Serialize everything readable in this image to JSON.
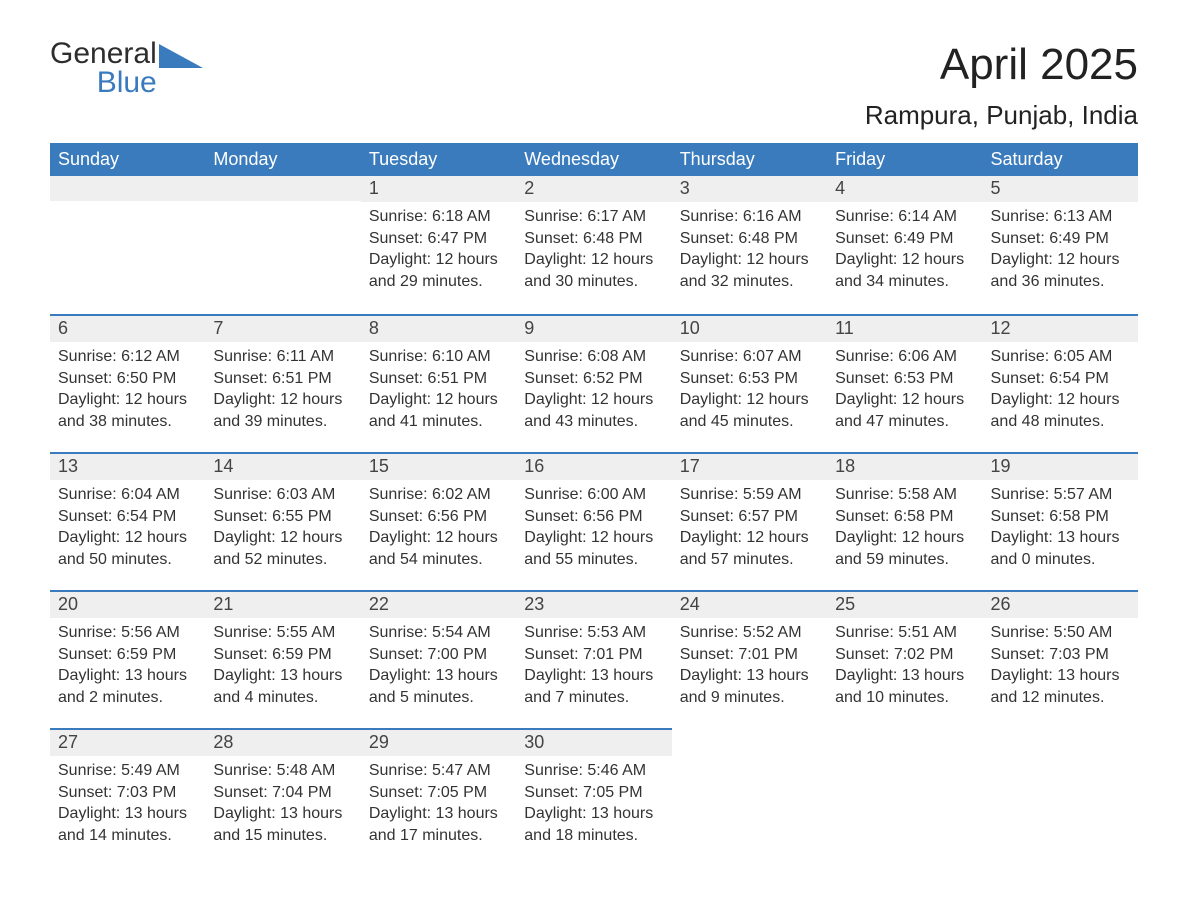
{
  "logo": {
    "text1": "General",
    "text2": "Blue"
  },
  "title": "April 2025",
  "subtitle": "Rampura, Punjab, India",
  "colors": {
    "header_bg": "#3a7bbd",
    "header_text": "#ffffff",
    "daynum_bg": "#efefef",
    "row_divider": "#3a7bbd",
    "body_text": "#333333",
    "page_bg": "#ffffff"
  },
  "day_labels": [
    "Sunday",
    "Monday",
    "Tuesday",
    "Wednesday",
    "Thursday",
    "Friday",
    "Saturday"
  ],
  "weeks": [
    [
      {
        "n": "",
        "sunrise": "",
        "sunset": "",
        "day1": "",
        "day2": ""
      },
      {
        "n": "",
        "sunrise": "",
        "sunset": "",
        "day1": "",
        "day2": ""
      },
      {
        "n": "1",
        "sunrise": "Sunrise: 6:18 AM",
        "sunset": "Sunset: 6:47 PM",
        "day1": "Daylight: 12 hours",
        "day2": "and 29 minutes."
      },
      {
        "n": "2",
        "sunrise": "Sunrise: 6:17 AM",
        "sunset": "Sunset: 6:48 PM",
        "day1": "Daylight: 12 hours",
        "day2": "and 30 minutes."
      },
      {
        "n": "3",
        "sunrise": "Sunrise: 6:16 AM",
        "sunset": "Sunset: 6:48 PM",
        "day1": "Daylight: 12 hours",
        "day2": "and 32 minutes."
      },
      {
        "n": "4",
        "sunrise": "Sunrise: 6:14 AM",
        "sunset": "Sunset: 6:49 PM",
        "day1": "Daylight: 12 hours",
        "day2": "and 34 minutes."
      },
      {
        "n": "5",
        "sunrise": "Sunrise: 6:13 AM",
        "sunset": "Sunset: 6:49 PM",
        "day1": "Daylight: 12 hours",
        "day2": "and 36 minutes."
      }
    ],
    [
      {
        "n": "6",
        "sunrise": "Sunrise: 6:12 AM",
        "sunset": "Sunset: 6:50 PM",
        "day1": "Daylight: 12 hours",
        "day2": "and 38 minutes."
      },
      {
        "n": "7",
        "sunrise": "Sunrise: 6:11 AM",
        "sunset": "Sunset: 6:51 PM",
        "day1": "Daylight: 12 hours",
        "day2": "and 39 minutes."
      },
      {
        "n": "8",
        "sunrise": "Sunrise: 6:10 AM",
        "sunset": "Sunset: 6:51 PM",
        "day1": "Daylight: 12 hours",
        "day2": "and 41 minutes."
      },
      {
        "n": "9",
        "sunrise": "Sunrise: 6:08 AM",
        "sunset": "Sunset: 6:52 PM",
        "day1": "Daylight: 12 hours",
        "day2": "and 43 minutes."
      },
      {
        "n": "10",
        "sunrise": "Sunrise: 6:07 AM",
        "sunset": "Sunset: 6:53 PM",
        "day1": "Daylight: 12 hours",
        "day2": "and 45 minutes."
      },
      {
        "n": "11",
        "sunrise": "Sunrise: 6:06 AM",
        "sunset": "Sunset: 6:53 PM",
        "day1": "Daylight: 12 hours",
        "day2": "and 47 minutes."
      },
      {
        "n": "12",
        "sunrise": "Sunrise: 6:05 AM",
        "sunset": "Sunset: 6:54 PM",
        "day1": "Daylight: 12 hours",
        "day2": "and 48 minutes."
      }
    ],
    [
      {
        "n": "13",
        "sunrise": "Sunrise: 6:04 AM",
        "sunset": "Sunset: 6:54 PM",
        "day1": "Daylight: 12 hours",
        "day2": "and 50 minutes."
      },
      {
        "n": "14",
        "sunrise": "Sunrise: 6:03 AM",
        "sunset": "Sunset: 6:55 PM",
        "day1": "Daylight: 12 hours",
        "day2": "and 52 minutes."
      },
      {
        "n": "15",
        "sunrise": "Sunrise: 6:02 AM",
        "sunset": "Sunset: 6:56 PM",
        "day1": "Daylight: 12 hours",
        "day2": "and 54 minutes."
      },
      {
        "n": "16",
        "sunrise": "Sunrise: 6:00 AM",
        "sunset": "Sunset: 6:56 PM",
        "day1": "Daylight: 12 hours",
        "day2": "and 55 minutes."
      },
      {
        "n": "17",
        "sunrise": "Sunrise: 5:59 AM",
        "sunset": "Sunset: 6:57 PM",
        "day1": "Daylight: 12 hours",
        "day2": "and 57 minutes."
      },
      {
        "n": "18",
        "sunrise": "Sunrise: 5:58 AM",
        "sunset": "Sunset: 6:58 PM",
        "day1": "Daylight: 12 hours",
        "day2": "and 59 minutes."
      },
      {
        "n": "19",
        "sunrise": "Sunrise: 5:57 AM",
        "sunset": "Sunset: 6:58 PM",
        "day1": "Daylight: 13 hours",
        "day2": "and 0 minutes."
      }
    ],
    [
      {
        "n": "20",
        "sunrise": "Sunrise: 5:56 AM",
        "sunset": "Sunset: 6:59 PM",
        "day1": "Daylight: 13 hours",
        "day2": "and 2 minutes."
      },
      {
        "n": "21",
        "sunrise": "Sunrise: 5:55 AM",
        "sunset": "Sunset: 6:59 PM",
        "day1": "Daylight: 13 hours",
        "day2": "and 4 minutes."
      },
      {
        "n": "22",
        "sunrise": "Sunrise: 5:54 AM",
        "sunset": "Sunset: 7:00 PM",
        "day1": "Daylight: 13 hours",
        "day2": "and 5 minutes."
      },
      {
        "n": "23",
        "sunrise": "Sunrise: 5:53 AM",
        "sunset": "Sunset: 7:01 PM",
        "day1": "Daylight: 13 hours",
        "day2": "and 7 minutes."
      },
      {
        "n": "24",
        "sunrise": "Sunrise: 5:52 AM",
        "sunset": "Sunset: 7:01 PM",
        "day1": "Daylight: 13 hours",
        "day2": "and 9 minutes."
      },
      {
        "n": "25",
        "sunrise": "Sunrise: 5:51 AM",
        "sunset": "Sunset: 7:02 PM",
        "day1": "Daylight: 13 hours",
        "day2": "and 10 minutes."
      },
      {
        "n": "26",
        "sunrise": "Sunrise: 5:50 AM",
        "sunset": "Sunset: 7:03 PM",
        "day1": "Daylight: 13 hours",
        "day2": "and 12 minutes."
      }
    ],
    [
      {
        "n": "27",
        "sunrise": "Sunrise: 5:49 AM",
        "sunset": "Sunset: 7:03 PM",
        "day1": "Daylight: 13 hours",
        "day2": "and 14 minutes."
      },
      {
        "n": "28",
        "sunrise": "Sunrise: 5:48 AM",
        "sunset": "Sunset: 7:04 PM",
        "day1": "Daylight: 13 hours",
        "day2": "and 15 minutes."
      },
      {
        "n": "29",
        "sunrise": "Sunrise: 5:47 AM",
        "sunset": "Sunset: 7:05 PM",
        "day1": "Daylight: 13 hours",
        "day2": "and 17 minutes."
      },
      {
        "n": "30",
        "sunrise": "Sunrise: 5:46 AM",
        "sunset": "Sunset: 7:05 PM",
        "day1": "Daylight: 13 hours",
        "day2": "and 18 minutes."
      },
      {
        "n": "",
        "sunrise": "",
        "sunset": "",
        "day1": "",
        "day2": ""
      },
      {
        "n": "",
        "sunrise": "",
        "sunset": "",
        "day1": "",
        "day2": ""
      },
      {
        "n": "",
        "sunrise": "",
        "sunset": "",
        "day1": "",
        "day2": ""
      }
    ]
  ]
}
